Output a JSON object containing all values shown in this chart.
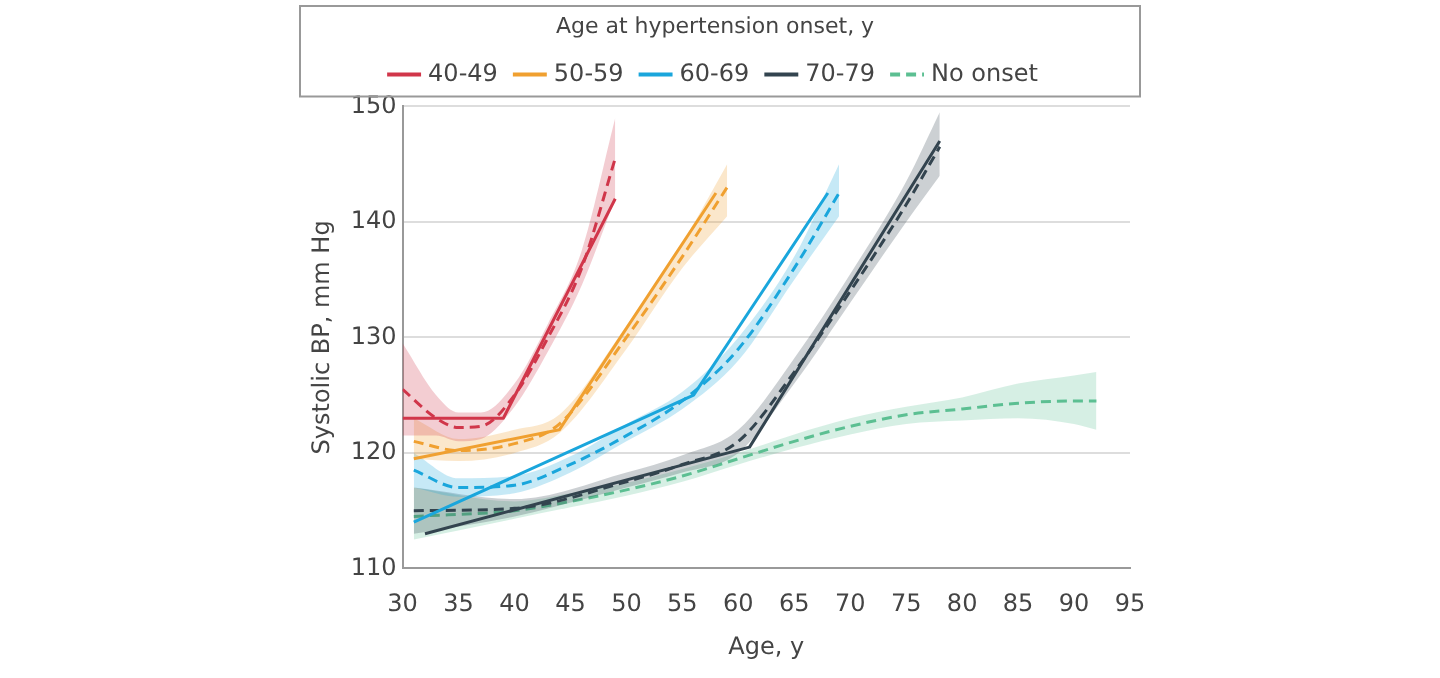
{
  "chart_data": {
    "type": "line",
    "xlabel": "Age, y",
    "ylabel": "Systolic BP, mm Hg",
    "legend_title": "Age at hypertension onset, y",
    "legend": "top",
    "grid": "y",
    "marker": "none",
    "xlim": [
      30,
      95
    ],
    "xticks": [
      30,
      35,
      40,
      45,
      50,
      55,
      60,
      65,
      70,
      75,
      80,
      85,
      90,
      95
    ],
    "ylim": [
      110,
      150
    ],
    "yticks": [
      110,
      120,
      130,
      140,
      150
    ],
    "series": [
      {
        "name": "40-49",
        "color": "#d1364a",
        "line_style": "solid",
        "x": [
          30,
          39,
          49
        ],
        "values": [
          123,
          123,
          142
        ]
      },
      {
        "color": "#d1364a",
        "line_style": "dashed",
        "x": [
          30,
          33,
          35,
          37,
          40,
          43,
          46,
          49
        ],
        "values": [
          125.5,
          123,
          122.2,
          122.3,
          125,
          130,
          136,
          145.5
        ],
        "lower": [
          121.5,
          121.5,
          121,
          121.2,
          124,
          128.8,
          134.5,
          142
        ],
        "upper": [
          129.5,
          125,
          123.5,
          123.5,
          126,
          131.2,
          137.5,
          149
        ]
      },
      {
        "name": "50-59",
        "color": "#f0a030",
        "line_style": "solid",
        "x": [
          31,
          44,
          58
        ],
        "values": [
          119.5,
          122,
          142.5
        ]
      },
      {
        "color": "#f0a030",
        "line_style": "dashed",
        "x": [
          31,
          35,
          40,
          44,
          50,
          55,
          59
        ],
        "values": [
          121,
          120.2,
          120.8,
          122.5,
          130,
          137,
          143
        ],
        "lower": [
          119.5,
          119.3,
          120,
          121.7,
          129,
          136,
          140.5
        ],
        "upper": [
          123,
          121.2,
          122,
          123.3,
          131,
          138.2,
          145
        ]
      },
      {
        "name": "60-69",
        "color": "#1aa6dc",
        "line_style": "solid",
        "x": [
          31,
          56,
          68
        ],
        "values": [
          114,
          125,
          142.5
        ]
      },
      {
        "color": "#1aa6dc",
        "line_style": "dashed",
        "x": [
          31,
          35,
          40,
          45,
          50,
          55,
          60,
          65,
          69
        ],
        "values": [
          118.5,
          117,
          117.2,
          119,
          121.5,
          124.5,
          129,
          136,
          142.5
        ],
        "lower": [
          117,
          116.2,
          116.5,
          118.3,
          121,
          123.8,
          128,
          135,
          140.5
        ],
        "upper": [
          120,
          117.8,
          118,
          119.7,
          122.5,
          125.3,
          130,
          137,
          145
        ]
      },
      {
        "name": "70-79",
        "color": "#33444f",
        "line_style": "solid",
        "x": [
          32,
          61,
          78
        ],
        "values": [
          113,
          120.5,
          147
        ]
      },
      {
        "color": "#33444f",
        "line_style": "dashed",
        "x": [
          31,
          40,
          50,
          55,
          60,
          65,
          70,
          75,
          78
        ],
        "values": [
          115,
          115.2,
          117.5,
          119,
          121,
          127,
          134,
          141.5,
          146.5
        ],
        "lower": [
          113,
          114.5,
          117,
          118.3,
          120,
          126,
          133,
          140,
          144
        ],
        "upper": [
          117,
          116,
          118.3,
          119.8,
          122,
          128.2,
          135.5,
          143.5,
          149.5
        ]
      },
      {
        "name": "No onset",
        "color": "#5cbf92",
        "line_style": "dashed",
        "x": [
          31,
          40,
          45,
          50,
          55,
          60,
          65,
          70,
          75,
          80,
          85,
          90,
          92
        ],
        "values": [
          114.5,
          115,
          115.8,
          116.8,
          118,
          119.5,
          121,
          122.3,
          123.3,
          123.8,
          124.3,
          124.5,
          124.5
        ],
        "lower": [
          112.5,
          114.3,
          115.3,
          116.3,
          117.5,
          119,
          120.4,
          121.6,
          122.5,
          122.8,
          123,
          122.5,
          122
        ],
        "upper": [
          117,
          115.8,
          116.5,
          117.4,
          118.6,
          120,
          121.6,
          123,
          124,
          124.8,
          126,
          126.7,
          127
        ]
      }
    ]
  }
}
